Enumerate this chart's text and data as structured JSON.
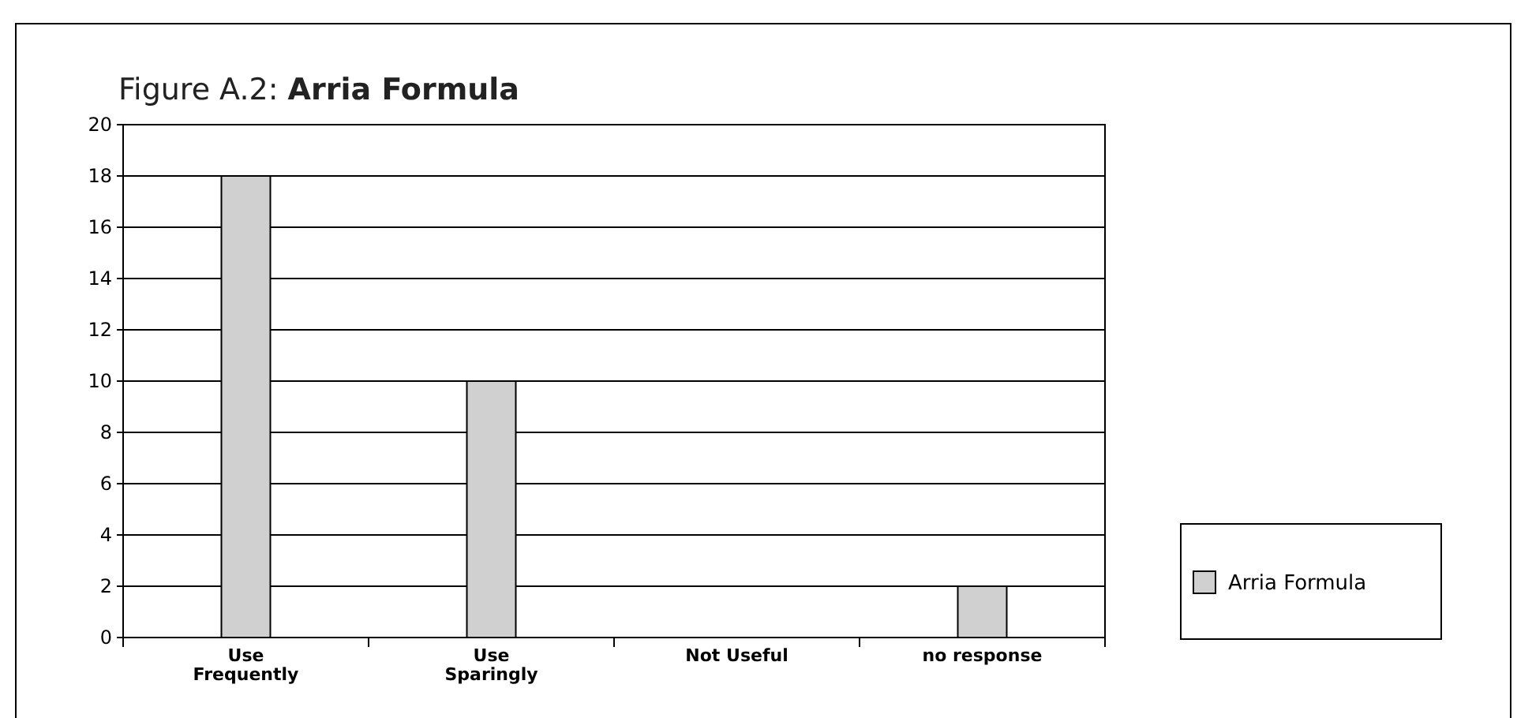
{
  "chart_data": {
    "type": "bar",
    "title": "Figure A.2: Arria Formula",
    "categories": [
      "Use Frequently",
      "Use Sparingly",
      "Not Useful",
      "no response"
    ],
    "series": [
      {
        "name": "Arria Formula",
        "color": "#d0d0d0",
        "values": [
          18,
          10,
          0,
          2
        ]
      }
    ],
    "ylim": [
      0,
      20
    ],
    "yticks": [
      0,
      2,
      4,
      6,
      8,
      10,
      12,
      14,
      16,
      18,
      20
    ],
    "grid": "y",
    "legend": "right"
  }
}
